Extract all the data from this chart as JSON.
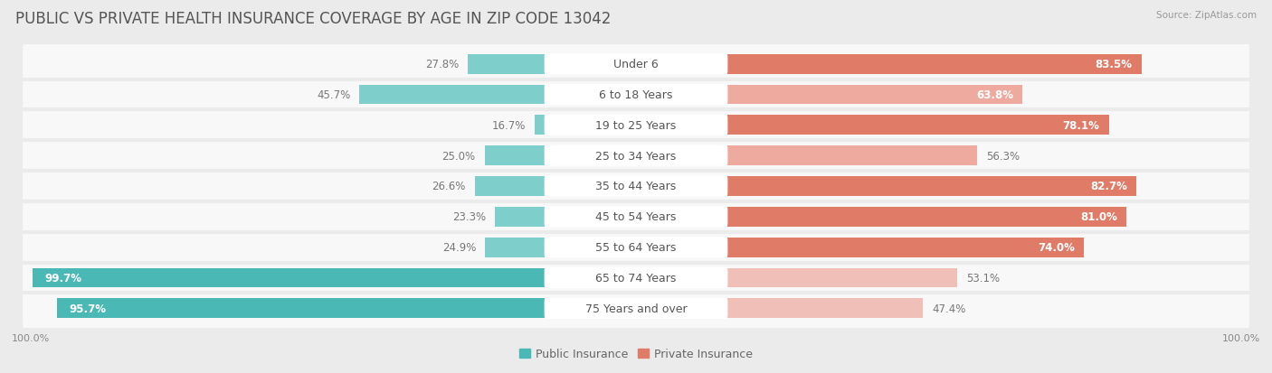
{
  "title": "PUBLIC VS PRIVATE HEALTH INSURANCE COVERAGE BY AGE IN ZIP CODE 13042",
  "source": "Source: ZipAtlas.com",
  "categories": [
    "Under 6",
    "6 to 18 Years",
    "19 to 25 Years",
    "25 to 34 Years",
    "35 to 44 Years",
    "45 to 54 Years",
    "55 to 64 Years",
    "65 to 74 Years",
    "75 Years and over"
  ],
  "public_values": [
    27.8,
    45.7,
    16.7,
    25.0,
    26.6,
    23.3,
    24.9,
    99.7,
    95.7
  ],
  "private_values": [
    83.5,
    63.8,
    78.1,
    56.3,
    82.7,
    81.0,
    74.0,
    53.1,
    47.4
  ],
  "public_color_dark": "#4ab8b4",
  "public_color_light": "#7ecfcc",
  "private_color_dark": "#e07b67",
  "private_color_light": "#eeaa9e",
  "private_color_vlight": "#f0c0b8",
  "background_color": "#ebebeb",
  "row_bg_color": "#f8f8f8",
  "separator_color": "#dddddd",
  "title_color": "#555555",
  "source_color": "#999999",
  "label_color": "#555555",
  "value_color_dark": "#ffffff",
  "value_color_light": "#777777",
  "title_fontsize": 12,
  "label_fontsize": 9,
  "value_fontsize": 8.5,
  "legend_fontsize": 9,
  "axis_label_fontsize": 8
}
